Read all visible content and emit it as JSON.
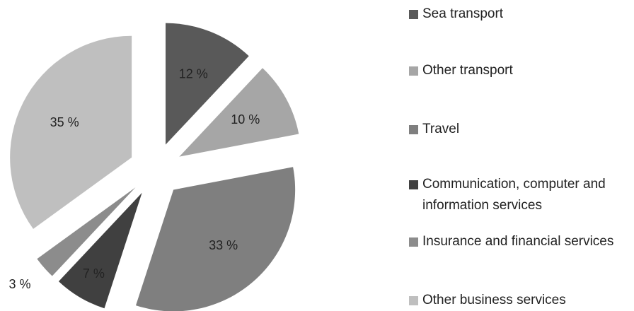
{
  "chart_data": {
    "type": "pie",
    "categories": [
      "Sea transport",
      "Other transport",
      "Travel",
      "Communication, computer and information services",
      "Insurance and financial services",
      "Other business services"
    ],
    "values": [
      12,
      10,
      33,
      7,
      3,
      35
    ],
    "value_labels": [
      "12 %",
      "10 %",
      "33 %",
      "7 %",
      "3 %",
      "35 %"
    ],
    "colors": [
      "#595959",
      "#a6a6a6",
      "#7f7f7f",
      "#404040",
      "#8c8c8c",
      "#bfbfbf"
    ],
    "exploded": true,
    "legend": "right"
  }
}
